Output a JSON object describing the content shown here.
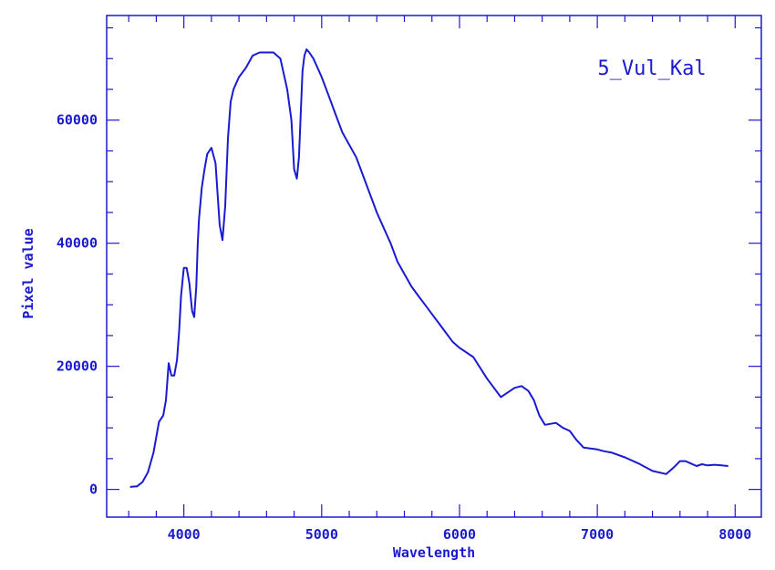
{
  "colors": {
    "ink": "#1a1ad0"
  },
  "chart_data": {
    "type": "line",
    "title": "5_Vul_Kal",
    "xlabel": "Wavelength",
    "ylabel": "Pixel value",
    "xlim": [
      3440,
      8190
    ],
    "ylim": [
      -4500,
      77000
    ],
    "x_ticks": [
      4000,
      5000,
      6000,
      7000,
      8000
    ],
    "y_ticks": [
      0,
      20000,
      40000,
      60000
    ],
    "x_minor_step": 200,
    "y_minor_step": 5000,
    "legend": "top-right",
    "grid": false,
    "series": [
      {
        "x": [
          3610,
          3660,
          3700,
          3740,
          3780,
          3820,
          3850,
          3870,
          3890,
          3910,
          3930,
          3950,
          3965,
          3980,
          4000,
          4020,
          4040,
          4060,
          4075,
          4090,
          4101,
          4110,
          4130,
          4150,
          4170,
          4200,
          4230,
          4260,
          4280,
          4300,
          4320,
          4340,
          4360,
          4380,
          4400,
          4450,
          4500,
          4550,
          4600,
          4650,
          4700,
          4750,
          4780,
          4800,
          4820,
          4835,
          4850,
          4861,
          4875,
          4890,
          4910,
          4940,
          4970,
          5000,
          5050,
          5100,
          5150,
          5200,
          5250,
          5300,
          5350,
          5400,
          5450,
          5500,
          5550,
          5600,
          5650,
          5700,
          5750,
          5800,
          5850,
          5900,
          5950,
          6000,
          6100,
          6200,
          6300,
          6400,
          6450,
          6500,
          6540,
          6563,
          6580,
          6620,
          6700,
          6750,
          6800,
          6850,
          6900,
          7000,
          7050,
          7100,
          7200,
          7300,
          7400,
          7500,
          7560,
          7600,
          7640,
          7680,
          7720,
          7760,
          7800,
          7850,
          7900,
          7950
        ],
        "y": [
          400,
          500,
          1200,
          2800,
          6000,
          11000,
          12000,
          14500,
          20500,
          18500,
          18500,
          21000,
          25500,
          31500,
          36000,
          36000,
          33500,
          29000,
          28000,
          33000,
          40000,
          44000,
          49000,
          52000,
          54500,
          55500,
          53000,
          43000,
          40500,
          46000,
          57000,
          63000,
          65000,
          66000,
          67000,
          68500,
          70500,
          71000,
          71000,
          71000,
          70000,
          65000,
          60000,
          52000,
          50500,
          54000,
          62000,
          68000,
          70500,
          71500,
          71000,
          70000,
          68500,
          67000,
          64000,
          61000,
          58000,
          56000,
          54000,
          51000,
          48000,
          45000,
          42500,
          40000,
          37000,
          35000,
          33000,
          31500,
          30000,
          28500,
          27000,
          25500,
          24000,
          23000,
          21500,
          18000,
          15000,
          16500,
          16800,
          16000,
          14500,
          13000,
          12000,
          10500,
          10800,
          10000,
          9500,
          8000,
          6800,
          6500,
          6200,
          6000,
          5200,
          4200,
          3000,
          2500,
          3700,
          4600,
          4600,
          4200,
          3800,
          4100,
          3900,
          4000,
          3900,
          3800
        ]
      }
    ]
  }
}
